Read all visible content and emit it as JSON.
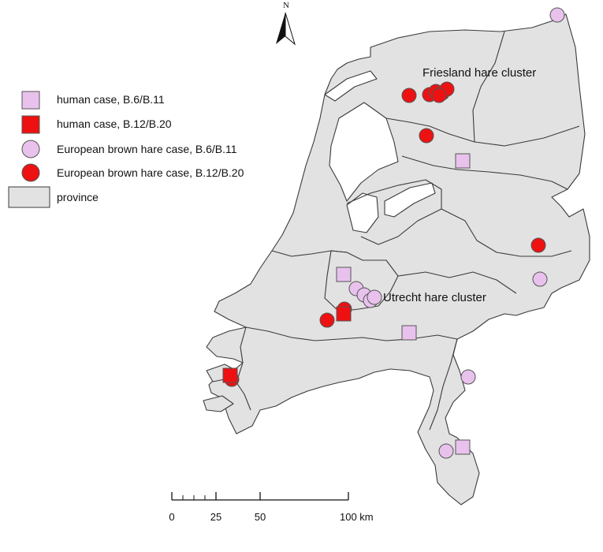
{
  "legend": {
    "items": [
      {
        "label": "human case, B.6/B.11",
        "shape": "square",
        "color": "#e8c2ec"
      },
      {
        "label": "human case, B.12/B.20",
        "shape": "square",
        "color": "#ee1111"
      },
      {
        "label": "European brown hare case, B.6/B.11",
        "shape": "circle",
        "color": "#e8c2ec"
      },
      {
        "label": "European brown hare case, B.12/B.20",
        "shape": "circle",
        "color": "#ee1111"
      },
      {
        "label": "province",
        "shape": "rect",
        "color": "#e2e2e2"
      }
    ]
  },
  "annotations": {
    "friesland": "Friesland hare cluster",
    "utrecht": "Utrecht hare cluster"
  },
  "north_arrow": {
    "label": "N"
  },
  "scale_bar": {
    "labels": [
      "0",
      "25",
      "50",
      "100 km"
    ]
  },
  "colors": {
    "land": "#e2e2e2",
    "border": "#3a3a3a",
    "pink": "#e8c2ec",
    "red": "#ee1111"
  }
}
